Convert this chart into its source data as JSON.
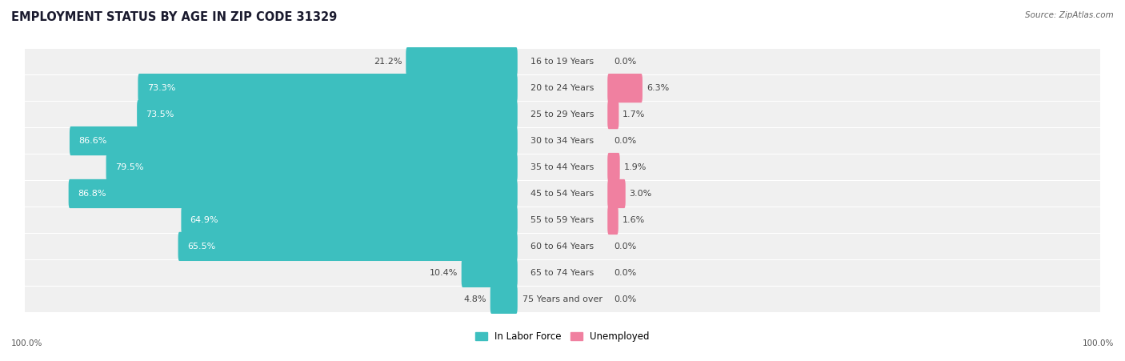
{
  "title": "EMPLOYMENT STATUS BY AGE IN ZIP CODE 31329",
  "source": "Source: ZipAtlas.com",
  "categories": [
    "16 to 19 Years",
    "20 to 24 Years",
    "25 to 29 Years",
    "30 to 34 Years",
    "35 to 44 Years",
    "45 to 54 Years",
    "55 to 59 Years",
    "60 to 64 Years",
    "65 to 74 Years",
    "75 Years and over"
  ],
  "in_labor_force": [
    21.2,
    73.3,
    73.5,
    86.6,
    79.5,
    86.8,
    64.9,
    65.5,
    10.4,
    4.8
  ],
  "unemployed": [
    0.0,
    6.3,
    1.7,
    0.0,
    1.9,
    3.0,
    1.6,
    0.0,
    0.0,
    0.0
  ],
  "labor_color": "#3dbfbf",
  "unemployed_color": "#f080a0",
  "row_bg_color": "#f0f0f0",
  "label_color_dark": "#444444",
  "label_color_white": "#ffffff",
  "axis_label_left": "100.0%",
  "axis_label_right": "100.0%",
  "legend_labor": "In Labor Force",
  "legend_unemployed": "Unemployed",
  "title_fontsize": 10.5,
  "source_fontsize": 7.5,
  "label_fontsize": 8,
  "tick_fontsize": 7.5
}
